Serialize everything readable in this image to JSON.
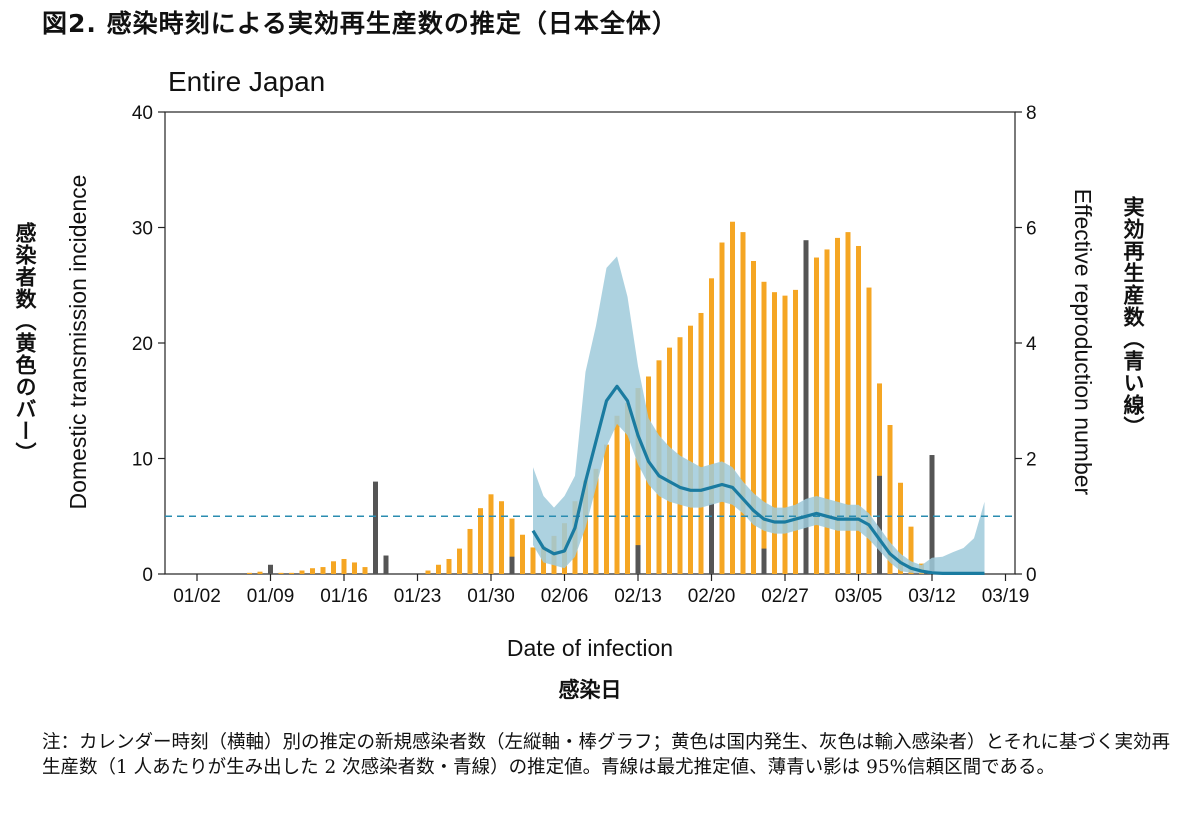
{
  "figure_title": "図2. 感染時刻による実効再生産数の推定（日本全体）",
  "note": "注：カレンダー時刻（横軸）別の推定の新規感染者数（左縦軸・棒グラフ；黄色は国内発生、灰色は輸入感染者）とそれに基づく実効再生産数（1 人あたりが生み出した 2 次感染者数・青線）の推定値。青線は最尤推定値、薄青い影は 95%信頼区間である。",
  "labels": {
    "left_jp": "感染者数（黄色のバー）",
    "right_jp": "実効再生産数（青い線）",
    "x_jp": "感染日"
  },
  "colors": {
    "domestic": "#F5A623",
    "imported": "#555555",
    "rt_line": "#1A7BA0",
    "ci_band": "#9FCADB",
    "threshold": "#2A8CB0"
  },
  "chart_data": {
    "type": "bar",
    "title": "Entire Japan",
    "xlabel": "Date of infection",
    "ylabel": "Domestic transmission incidence",
    "y2label": "Effective reproduction number",
    "ylim": [
      0,
      40
    ],
    "y2lim": [
      0,
      8
    ],
    "yticks": [
      0,
      10,
      20,
      30,
      40
    ],
    "y2ticks": [
      0,
      2,
      4,
      6,
      8
    ],
    "x_tick_labels": [
      "01/02",
      "01/09",
      "01/16",
      "01/23",
      "01/30",
      "02/06",
      "02/13",
      "02/20",
      "02/27",
      "03/05",
      "03/12",
      "03/19"
    ],
    "threshold_rt": 1,
    "days": [
      "01/07",
      "01/08",
      "01/09",
      "01/10",
      "01/11",
      "01/12",
      "01/13",
      "01/14",
      "01/15",
      "01/16",
      "01/17",
      "01/18",
      "01/19",
      "01/20",
      "01/21",
      "01/22",
      "01/23",
      "01/24",
      "01/25",
      "01/26",
      "01/27",
      "01/28",
      "01/29",
      "01/30",
      "01/31",
      "02/01",
      "02/02",
      "02/03",
      "02/04",
      "02/05",
      "02/06",
      "02/07",
      "02/08",
      "02/09",
      "02/10",
      "02/11",
      "02/12",
      "02/13",
      "02/14",
      "02/15",
      "02/16",
      "02/17",
      "02/18",
      "02/19",
      "02/20",
      "02/21",
      "02/22",
      "02/23",
      "02/24",
      "02/25",
      "02/26",
      "02/27",
      "02/28",
      "02/29",
      "03/01",
      "03/02",
      "03/03",
      "03/04",
      "03/05",
      "03/06",
      "03/07",
      "03/08",
      "03/09",
      "03/10",
      "03/11",
      "03/12"
    ],
    "series": [
      {
        "name": "domestic",
        "values": [
          0.1,
          0.2,
          0.2,
          0.1,
          0.1,
          0.3,
          0.5,
          0.6,
          1.1,
          1.3,
          1.0,
          0.6,
          0.1,
          0,
          0,
          0,
          0,
          0.3,
          0.8,
          1.3,
          2.2,
          3.9,
          5.7,
          6.9,
          6.3,
          4.8,
          3.4,
          2.3,
          2.4,
          3.3,
          4.4,
          6.3,
          8.1,
          9.1,
          11.2,
          13.7,
          14.8,
          16.1,
          17.1,
          18.5,
          19.6,
          20.5,
          21.5,
          22.6,
          25.6,
          28.7,
          30.5,
          29.6,
          27.1,
          25.3,
          24.4,
          24.1,
          24.6,
          25.8,
          27.4,
          28.1,
          29.1,
          29.6,
          28.4,
          24.8,
          16.5,
          12.9,
          7.9,
          4.1,
          0.9,
          0.3
        ]
      },
      {
        "name": "imported",
        "values": [
          0,
          0,
          0.8,
          0,
          0,
          0,
          0,
          0,
          0,
          0,
          0,
          0,
          8.0,
          1.6,
          0,
          0,
          0,
          0,
          0,
          0,
          0,
          0,
          0,
          0,
          0,
          1.5,
          0,
          0,
          0,
          0,
          0,
          0,
          0,
          0,
          0,
          0,
          0,
          2.5,
          0,
          0,
          0,
          0,
          0,
          0,
          6.1,
          0,
          0,
          0,
          0,
          2.2,
          0,
          0,
          0,
          28.9,
          0,
          0,
          0,
          0,
          0,
          0,
          8.5,
          0,
          0,
          0,
          0,
          10.3
        ]
      }
    ],
    "rt": {
      "x": [
        "02/03",
        "02/04",
        "02/05",
        "02/06",
        "02/07",
        "02/08",
        "02/09",
        "02/10",
        "02/11",
        "02/12",
        "02/13",
        "02/14",
        "02/15",
        "02/16",
        "02/17",
        "02/18",
        "02/19",
        "02/20",
        "02/21",
        "02/22",
        "02/23",
        "02/24",
        "02/25",
        "02/26",
        "02/27",
        "02/28",
        "02/29",
        "03/01",
        "03/02",
        "03/03",
        "03/04",
        "03/05",
        "03/06",
        "03/07",
        "03/08",
        "03/09",
        "03/10",
        "03/11",
        "03/12",
        "03/13",
        "03/14",
        "03/15",
        "03/16",
        "03/17"
      ],
      "median": [
        0.75,
        0.45,
        0.35,
        0.4,
        0.8,
        1.6,
        2.3,
        3.0,
        3.25,
        3.0,
        2.4,
        1.95,
        1.7,
        1.6,
        1.5,
        1.45,
        1.45,
        1.5,
        1.55,
        1.5,
        1.3,
        1.1,
        0.95,
        0.9,
        0.9,
        0.95,
        1.0,
        1.05,
        1.0,
        0.95,
        0.95,
        0.95,
        0.85,
        0.6,
        0.35,
        0.2,
        0.1,
        0.05,
        0.02,
        0.01,
        0.01,
        0.01,
        0.01,
        0.01
      ],
      "lower": [
        0.5,
        0.2,
        0.15,
        0.1,
        0.3,
        0.8,
        1.5,
        2.2,
        2.6,
        2.4,
        1.9,
        1.55,
        1.35,
        1.25,
        1.2,
        1.15,
        1.15,
        1.2,
        1.25,
        1.2,
        1.05,
        0.85,
        0.75,
        0.7,
        0.7,
        0.75,
        0.8,
        0.85,
        0.8,
        0.75,
        0.75,
        0.75,
        0.6,
        0.4,
        0.2,
        0.05,
        0.02,
        0.01,
        0,
        0,
        0,
        0,
        0,
        0
      ],
      "upper": [
        1.85,
        1.35,
        1.15,
        1.35,
        1.7,
        3.5,
        4.3,
        5.3,
        5.5,
        4.8,
        3.6,
        2.7,
        2.4,
        2.2,
        2.05,
        1.95,
        1.85,
        1.9,
        1.95,
        1.85,
        1.6,
        1.4,
        1.25,
        1.15,
        1.15,
        1.2,
        1.3,
        1.35,
        1.3,
        1.25,
        1.2,
        1.2,
        1.05,
        0.8,
        0.55,
        0.35,
        0.22,
        0.15,
        0.28,
        0.3,
        0.38,
        0.45,
        0.62,
        1.25
      ]
    }
  }
}
